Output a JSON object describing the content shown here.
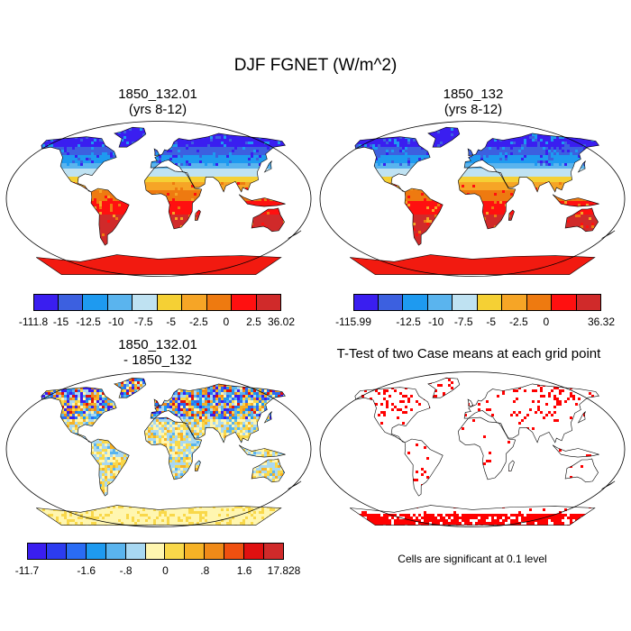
{
  "figure": {
    "title": "DJF FGNET (W/m^2)"
  },
  "panels": [
    {
      "id": "top-left",
      "title_line1": "1850_132.01",
      "title_line2": "(yrs 8-12)",
      "colorbar": {
        "colors": [
          "#3a1ef0",
          "#3c60e0",
          "#1e9af0",
          "#5ab4ee",
          "#bfe2f2",
          "#f5d034",
          "#f6a526",
          "#ee7a10",
          "#ff1010",
          "#d02a2a"
        ],
        "labels": [
          "-111.8",
          "-15",
          "-12.5",
          "-10",
          "-7.5",
          "-5",
          "-2.5",
          "0",
          "2.5",
          "36.02"
        ]
      }
    },
    {
      "id": "top-right",
      "title_line1": "1850_132",
      "title_line2": "(yrs 8-12)",
      "colorbar": {
        "colors": [
          "#3a1ef0",
          "#3c60e0",
          "#1e9af0",
          "#5ab4ee",
          "#bfe2f2",
          "#f5d034",
          "#f6a526",
          "#ee7a10",
          "#ff1010",
          "#d02a2a"
        ],
        "labels": [
          "-115.99",
          "",
          "-12.5",
          "-10",
          "-7.5",
          "-5",
          "-2.5",
          "0",
          "",
          "36.32"
        ]
      }
    },
    {
      "id": "bottom-left",
      "title_line1": "1850_132.01",
      "title_line2": "- 1850_132",
      "colorbar": {
        "colors": [
          "#3a1ef0",
          "#2c3cf0",
          "#2a6cf4",
          "#1e9af0",
          "#5ab4ee",
          "#a8d8f2",
          "#fff6b0",
          "#f9d84a",
          "#f6b226",
          "#f08a18",
          "#f05010",
          "#e01010",
          "#d02a2a"
        ],
        "labels": [
          "-11.7",
          "",
          "",
          "-1.6",
          "",
          "-.8",
          "",
          "0",
          "",
          ".8",
          "",
          "1.6",
          "",
          "17.828"
        ]
      }
    },
    {
      "id": "bottom-right",
      "title_line1": "T-Test of two Case means at each grid point",
      "note": "Cells are significant at 0.1 level"
    }
  ]
}
